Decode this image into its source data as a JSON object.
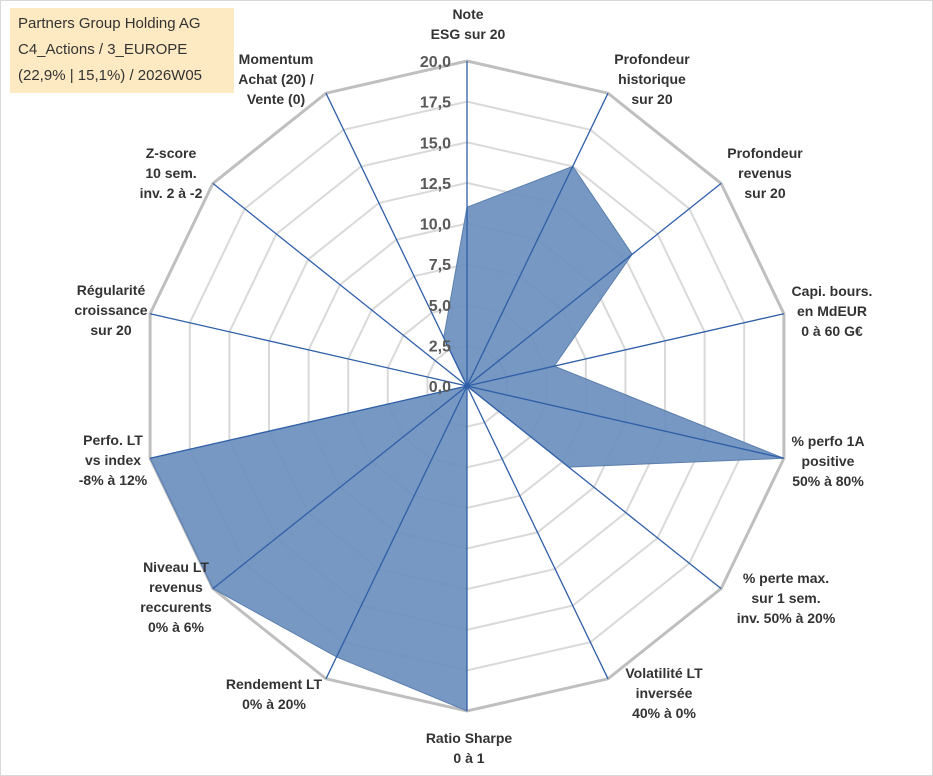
{
  "header": {
    "line1": "Partners Group Holding AG",
    "line2": "C4_Actions / 3_EUROPE",
    "line3": "(22,9% | 15,1%) / 2026W05"
  },
  "chart_data": {
    "type": "radar",
    "title": "",
    "rmin": 0,
    "rmax": 20,
    "ticks": [
      {
        "value": 0,
        "label": "0,0"
      },
      {
        "value": 2.5,
        "label": "2,5"
      },
      {
        "value": 5,
        "label": "5,0"
      },
      {
        "value": 7.5,
        "label": "7,5"
      },
      {
        "value": 10,
        "label": "10,0"
      },
      {
        "value": 12.5,
        "label": "12,5"
      },
      {
        "value": 15,
        "label": "15,0"
      },
      {
        "value": 17.5,
        "label": "17,5"
      },
      {
        "value": 20,
        "label": "20,0"
      }
    ],
    "grid": true,
    "series_color": "#6a8fbd",
    "axes": [
      {
        "name": "note-esg",
        "lines": [
          "Note",
          "ESG sur 20"
        ]
      },
      {
        "name": "profondeur-hist",
        "lines": [
          "Profondeur",
          "historique",
          "sur 20"
        ]
      },
      {
        "name": "profondeur-rev",
        "lines": [
          "Profondeur",
          "revenus",
          "sur 20"
        ]
      },
      {
        "name": "capi-bours",
        "lines": [
          "Capi. bours.",
          "en MdEUR",
          "0 à 60 G€"
        ]
      },
      {
        "name": "perfo-1a",
        "lines": [
          "% perfo 1A",
          "positive",
          "50% à 80%"
        ]
      },
      {
        "name": "perte-max",
        "lines": [
          "% perte max.",
          "sur 1 sem.",
          "inv. 50% à 20%"
        ]
      },
      {
        "name": "volatilite",
        "lines": [
          "Volatilité LT",
          "inversée",
          "40% à 0%"
        ]
      },
      {
        "name": "ratio-sharpe",
        "lines": [
          "Ratio Sharpe",
          "0 à 1"
        ]
      },
      {
        "name": "rendement-lt",
        "lines": [
          "Rendement LT",
          "0% à 20%"
        ]
      },
      {
        "name": "niveau-lt",
        "lines": [
          "Niveau LT",
          "revenus",
          "reccurents",
          "0% à 6%"
        ]
      },
      {
        "name": "perfo-lt",
        "lines": [
          "Perfo. LT",
          "vs index",
          "-8% à 12%"
        ]
      },
      {
        "name": "regularite",
        "lines": [
          "Régularité",
          "croissance",
          "sur 20"
        ]
      },
      {
        "name": "z-score",
        "lines": [
          "Z-score",
          "10 sem.",
          "inv. 2 à -2"
        ]
      },
      {
        "name": "momentum",
        "lines": [
          "Momentum",
          "Achat (20) /",
          "Vente (0)"
        ]
      }
    ],
    "series": [
      {
        "values": [
          11,
          15,
          13,
          5.5,
          20,
          8,
          0,
          20,
          18.5,
          20,
          20,
          0,
          0,
          3.3
        ]
      }
    ]
  }
}
